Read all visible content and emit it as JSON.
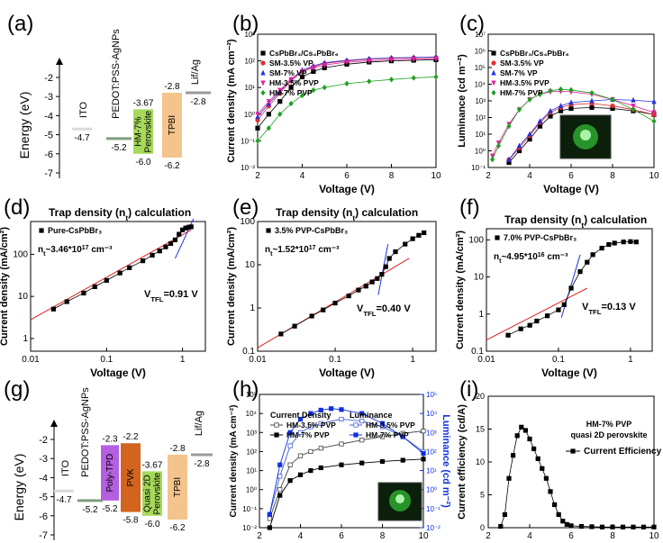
{
  "chart_data": [
    {
      "panel": "(a)",
      "type": "diagram",
      "ylabel": "Energy (eV)",
      "yticks": [
        "-2",
        "-3",
        "-4",
        "-5",
        "-6",
        "-7"
      ],
      "layers": [
        {
          "name": "ITO",
          "bottom": "-4.7",
          "color": "#d9d9d9"
        },
        {
          "name": "PEDOT:PSS-AgNPs",
          "bottom": "-5.2",
          "color": "#7f9f7f"
        },
        {
          "name": "HM-7% Perovskite",
          "top": "-3.67",
          "bottom": "-6.0",
          "color": "#a6d95b"
        },
        {
          "name": "TPBI",
          "top": "-2.8",
          "bottom": "-6.2",
          "color": "#f4c48c"
        },
        {
          "name": "Lif/Ag",
          "bottom": "-2.8",
          "color": "#999999"
        }
      ]
    },
    {
      "panel": "(b)",
      "type": "line",
      "xlabel": "Voltage (V)",
      "ylabel": "Current density (mA cm⁻²)",
      "xlim": [
        2,
        10
      ],
      "ylim_log": [
        0.01,
        1000
      ],
      "xticks": [
        "2",
        "4",
        "6",
        "8",
        "10"
      ],
      "yticks": [
        "10⁻²",
        "10⁻¹",
        "10⁰",
        "10¹",
        "10²",
        "10³"
      ],
      "legend": [
        "CsPbBr₃/Cs₄PbBr₆",
        "SM-3.5% VP",
        "SM-7% VP",
        "HM-3.5% PVP",
        "HM-7% PVP"
      ],
      "series": [
        {
          "name": "CsPbBr₃/Cs₄PbBr₆",
          "color": "#000000",
          "x": [
            2,
            2.5,
            3,
            3.5,
            4,
            4.5,
            5,
            6,
            7,
            8,
            9,
            10
          ],
          "y": [
            0.3,
            1,
            3,
            10,
            25,
            40,
            55,
            75,
            90,
            100,
            105,
            110
          ]
        },
        {
          "name": "SM-3.5% VP",
          "color": "#e03030",
          "x": [
            2,
            2.5,
            3,
            3.5,
            4,
            4.5,
            5,
            6,
            7,
            8,
            9,
            10
          ],
          "y": [
            0.6,
            2,
            6,
            18,
            40,
            60,
            80,
            100,
            115,
            125,
            130,
            135
          ]
        },
        {
          "name": "SM-7% VP",
          "color": "#2030e0",
          "x": [
            2,
            2.5,
            3,
            3.5,
            4,
            4.5,
            5,
            6,
            7,
            8,
            9,
            10
          ],
          "y": [
            0.8,
            2.5,
            7,
            20,
            45,
            65,
            85,
            105,
            120,
            130,
            135,
            140
          ]
        },
        {
          "name": "HM-3.5% PVP",
          "color": "#e020a0",
          "x": [
            2,
            2.5,
            3,
            3.5,
            4,
            4.5,
            5,
            6,
            7,
            8,
            9,
            10
          ],
          "y": [
            1,
            3,
            8,
            20,
            40,
            55,
            70,
            90,
            100,
            110,
            115,
            120
          ]
        },
        {
          "name": "HM-7% PVP",
          "color": "#20a020",
          "x": [
            2,
            2.5,
            3,
            3.5,
            4,
            4.5,
            5,
            6,
            7,
            8,
            9,
            10
          ],
          "y": [
            0.1,
            0.3,
            1,
            2.5,
            5,
            8,
            10,
            14,
            17,
            20,
            23,
            25
          ]
        }
      ]
    },
    {
      "panel": "(c)",
      "type": "line",
      "xlabel": "Voltage (V)",
      "ylabel": "Luminance (cd m⁻²)",
      "xlim": [
        2,
        10
      ],
      "ylim_log": [
        0.1,
        10000000
      ],
      "xticks": [
        "2",
        "4",
        "6",
        "8",
        "10"
      ],
      "yticks": [
        "10⁻¹",
        "10⁰",
        "10¹",
        "10²",
        "10³",
        "10⁴",
        "10⁵",
        "10⁶",
        "10⁷"
      ],
      "legend": [
        "CsPbBr₃/Cs₄PbBr₆",
        "SM-3.5% VP",
        "SM-7% VP",
        "HM-3.5% PVP",
        "HM-7% PVP"
      ],
      "series": [
        {
          "name": "CsPbBr₃/Cs₄PbBr₆",
          "color": "#000000",
          "x": [
            3,
            3.5,
            4,
            4.5,
            5,
            5.5,
            6,
            7,
            8,
            9,
            10
          ],
          "y": [
            0.2,
            1,
            5,
            30,
            120,
            250,
            350,
            400,
            350,
            250,
            150
          ]
        },
        {
          "name": "SM-3.5% VP",
          "color": "#e03030",
          "x": [
            3,
            3.5,
            4,
            4.5,
            5,
            5.5,
            6,
            7,
            8,
            9,
            10
          ],
          "y": [
            0.3,
            1.5,
            8,
            50,
            200,
            400,
            600,
            700,
            500,
            300,
            150
          ]
        },
        {
          "name": "SM-7% VP",
          "color": "#2030e0",
          "x": [
            3,
            3.5,
            4,
            4.5,
            5,
            5.5,
            6,
            7,
            8,
            9,
            10
          ],
          "y": [
            0.3,
            2,
            10,
            60,
            250,
            500,
            800,
            1000,
            1200,
            1100,
            900
          ]
        },
        {
          "name": "HM-3.5% PVP",
          "color": "#e020a0",
          "x": [
            2.2,
            2.5,
            3,
            3.5,
            4,
            4.5,
            5,
            5.5,
            6,
            7,
            8,
            9,
            10
          ],
          "y": [
            0.5,
            3,
            40,
            300,
            1200,
            2500,
            3500,
            3800,
            3500,
            2500,
            1200,
            500,
            200
          ]
        },
        {
          "name": "HM-7% PVP",
          "color": "#20a020",
          "x": [
            2.2,
            2.5,
            3,
            3.5,
            4,
            4.5,
            5,
            5.5,
            6,
            7,
            8,
            9,
            10
          ],
          "y": [
            0.3,
            2,
            30,
            300,
            1200,
            2500,
            4000,
            5000,
            4500,
            3000,
            1200,
            300,
            60
          ]
        }
      ]
    },
    {
      "panel": "(d)",
      "type": "scatter",
      "title": "Trap density (n",
      "title_sub": "t",
      "title_rest": ") calculation",
      "legend": "Pure-CsPbBr₃",
      "annotation": "n",
      "annotation_sub": "t",
      "annotation_rest": "~3.46*10",
      "annotation_exp": "17",
      "annotation_unit": " cm⁻³",
      "vtfl": "=0.91 V",
      "xlabel": "Voltage (V)",
      "ylabel": "Current density (mA/cm²)",
      "xlim_log": [
        0.01,
        2
      ],
      "ylim_log": [
        0.5,
        600
      ],
      "xticks": [
        "0.01",
        "0.1",
        "1"
      ],
      "yticks": [
        "1",
        "10",
        "100"
      ],
      "x": [
        0.02,
        0.03,
        0.05,
        0.07,
        0.1,
        0.15,
        0.2,
        0.3,
        0.4,
        0.5,
        0.6,
        0.7,
        0.8,
        0.9,
        1.0,
        1.1,
        1.2,
        1.3
      ],
      "y": [
        5,
        7.5,
        12,
        17,
        24,
        36,
        48,
        70,
        95,
        120,
        150,
        180,
        220,
        300,
        380,
        420,
        440,
        450
      ]
    },
    {
      "panel": "(e)",
      "type": "scatter",
      "title": "Trap density (n",
      "title_sub": "t",
      "title_rest": ") calculation",
      "legend": "3.5% PVP-CsPbBr₃",
      "annotation": "n",
      "annotation_sub": "t",
      "annotation_rest": "~1.52*10",
      "annotation_exp": "17",
      "annotation_unit": " cm⁻³",
      "vtfl": "=0.40 V",
      "xlabel": "Voltage (V)",
      "ylabel": "Current density (mA/cm²)",
      "xlim_log": [
        0.01,
        2
      ],
      "ylim_log": [
        0.1,
        100
      ],
      "xticks": [
        "0.01",
        "0.1",
        "1"
      ],
      "yticks": [
        "0.1",
        "1",
        "10",
        "100"
      ],
      "x": [
        0.02,
        0.03,
        0.05,
        0.07,
        0.1,
        0.15,
        0.2,
        0.25,
        0.3,
        0.35,
        0.4,
        0.45,
        0.5,
        0.6,
        0.8,
        1.0,
        1.2,
        1.4
      ],
      "y": [
        0.25,
        0.38,
        0.65,
        0.9,
        1.3,
        1.9,
        2.6,
        3.2,
        4,
        4.8,
        6,
        9,
        14,
        20,
        30,
        40,
        48,
        55
      ]
    },
    {
      "panel": "(f)",
      "type": "scatter",
      "title": "Trap density (n",
      "title_sub": "t",
      "title_rest": ") calculation",
      "legend": "7.0% PVP-CsPbBr₃",
      "annotation": "n",
      "annotation_sub": "t",
      "annotation_rest": "~4.95*10",
      "annotation_exp": "16",
      "annotation_unit": " cm⁻³",
      "vtfl": "=0.13 V",
      "xlabel": "Voltage (V)",
      "ylabel": "Current density (mA/cm²)",
      "xlim_log": [
        0.01,
        2
      ],
      "ylim_log": [
        0.1,
        200
      ],
      "xticks": [
        "0.01",
        "0.1",
        "1"
      ],
      "yticks": [
        "0.1",
        "1",
        "10",
        "100"
      ],
      "x": [
        0.02,
        0.03,
        0.04,
        0.05,
        0.07,
        0.1,
        0.12,
        0.15,
        0.2,
        0.25,
        0.3,
        0.4,
        0.5,
        0.6,
        0.8,
        1.0,
        1.2
      ],
      "y": [
        0.27,
        0.4,
        0.5,
        0.65,
        0.9,
        1.3,
        1.8,
        5,
        14,
        25,
        40,
        60,
        75,
        82,
        88,
        90,
        88
      ]
    },
    {
      "panel": "(g)",
      "type": "diagram",
      "ylabel": "Energy (eV)",
      "yticks": [
        "-2",
        "-3",
        "-4",
        "-5",
        "-6",
        "-7"
      ],
      "layers": [
        {
          "name": "ITO",
          "bottom": "-4.7",
          "color": "#d9d9d9"
        },
        {
          "name": "PEDOT:PSS-AgNPs",
          "bottom": "-5.2",
          "color": "#7f9f7f"
        },
        {
          "name": "Poly-TPD",
          "top": "-2.3",
          "bottom": "-5.2",
          "color": "#b45fe0"
        },
        {
          "name": "PVK",
          "top": "-2.2",
          "bottom": "-5.8",
          "color": "#d2641e"
        },
        {
          "name": "Quasi 2D Perovskite",
          "top": "-3.67",
          "bottom": "-6.0",
          "color": "#a6d95b"
        },
        {
          "name": "TPBI",
          "top": "-2.8",
          "bottom": "-6.2",
          "color": "#f4c48c"
        },
        {
          "name": "Lif/Ag",
          "bottom": "-2.8",
          "color": "#999999"
        }
      ]
    },
    {
      "panel": "(h)",
      "type": "line",
      "xlabel": "Voltage (V)",
      "ylabel": "Current density (mA cm⁻²)",
      "ylabel_right": "Luminance (cd m⁻²)",
      "xlim": [
        2,
        10
      ],
      "ylim_log": [
        0.01,
        100000
      ],
      "xticks": [
        "2",
        "4",
        "6",
        "8",
        "10"
      ],
      "yticks": [
        "10⁻²",
        "10⁻¹",
        "10⁰",
        "10¹",
        "10²",
        "10³",
        "10⁴",
        "10⁵"
      ],
      "legend_title_1": "Current Density",
      "legend_title_2": "Luminance",
      "legend": [
        "HM-3.5% PVP",
        "HM-7% PVP",
        "HM-3.5% PVP",
        "HM-7% PVP"
      ],
      "series": [
        {
          "name": "HM-3.5% PVP current",
          "color": "#444444",
          "open": true,
          "x": [
            2.5,
            3,
            3.5,
            4,
            4.5,
            5,
            6,
            7,
            8,
            9,
            10
          ],
          "y": [
            0.03,
            1,
            20,
            60,
            100,
            150,
            250,
            400,
            600,
            900,
            1200
          ]
        },
        {
          "name": "HM-7% PVP current",
          "color": "#000000",
          "open": false,
          "x": [
            2.5,
            3,
            3.5,
            4,
            4.5,
            5,
            6,
            7,
            8,
            9,
            10
          ],
          "y": [
            0.01,
            0.5,
            3,
            6,
            10,
            14,
            20,
            25,
            30,
            35,
            40
          ]
        },
        {
          "name": "HM-3.5% PVP luminance",
          "color": "#4060d0",
          "open": true,
          "x": [
            2.5,
            3,
            3.5,
            4,
            4.5,
            5,
            6,
            7,
            8,
            9,
            10
          ],
          "y": [
            0.05,
            5,
            200,
            1000,
            2000,
            3000,
            5000,
            4000,
            2000,
            600,
            100
          ]
        },
        {
          "name": "HM-7% PVP luminance",
          "color": "#1030e0",
          "open": false,
          "x": [
            2.5,
            3,
            3.5,
            4,
            4.5,
            5,
            5.5,
            6,
            7,
            8,
            9,
            10
          ],
          "y": [
            0.05,
            20,
            1000,
            5000,
            10000,
            15000,
            18000,
            16000,
            10000,
            3000,
            600,
            80
          ]
        }
      ]
    },
    {
      "panel": "(i)",
      "type": "line",
      "annotation_1": "HM-7% PVP",
      "annotation_2": "quasi 2D perovskite",
      "legend": "Current Efficiency",
      "xlabel": "Voltage (V)",
      "ylabel": "Current efficiency (cd/A)",
      "xlim": [
        2,
        10
      ],
      "ylim": [
        0,
        20
      ],
      "xticks": [
        "2",
        "4",
        "6",
        "8",
        "10"
      ],
      "yticks": [
        "0",
        "5",
        "10",
        "15",
        "20"
      ],
      "x": [
        2.6,
        2.8,
        3.0,
        3.2,
        3.4,
        3.6,
        3.8,
        4.0,
        4.2,
        4.4,
        4.6,
        4.8,
        5.0,
        5.2,
        5.4,
        5.6,
        5.8,
        6.0,
        6.5,
        7,
        7.5,
        8,
        8.5,
        9,
        9.5,
        10
      ],
      "y": [
        0.2,
        2,
        7.5,
        11,
        14,
        15.3,
        14.8,
        13.5,
        12,
        10.5,
        9,
        7.5,
        5.5,
        3.5,
        2,
        1,
        0.5,
        0.3,
        0.2,
        0.15,
        0.1,
        0.1,
        0.1,
        0.1,
        0.1,
        0.1
      ]
    }
  ]
}
